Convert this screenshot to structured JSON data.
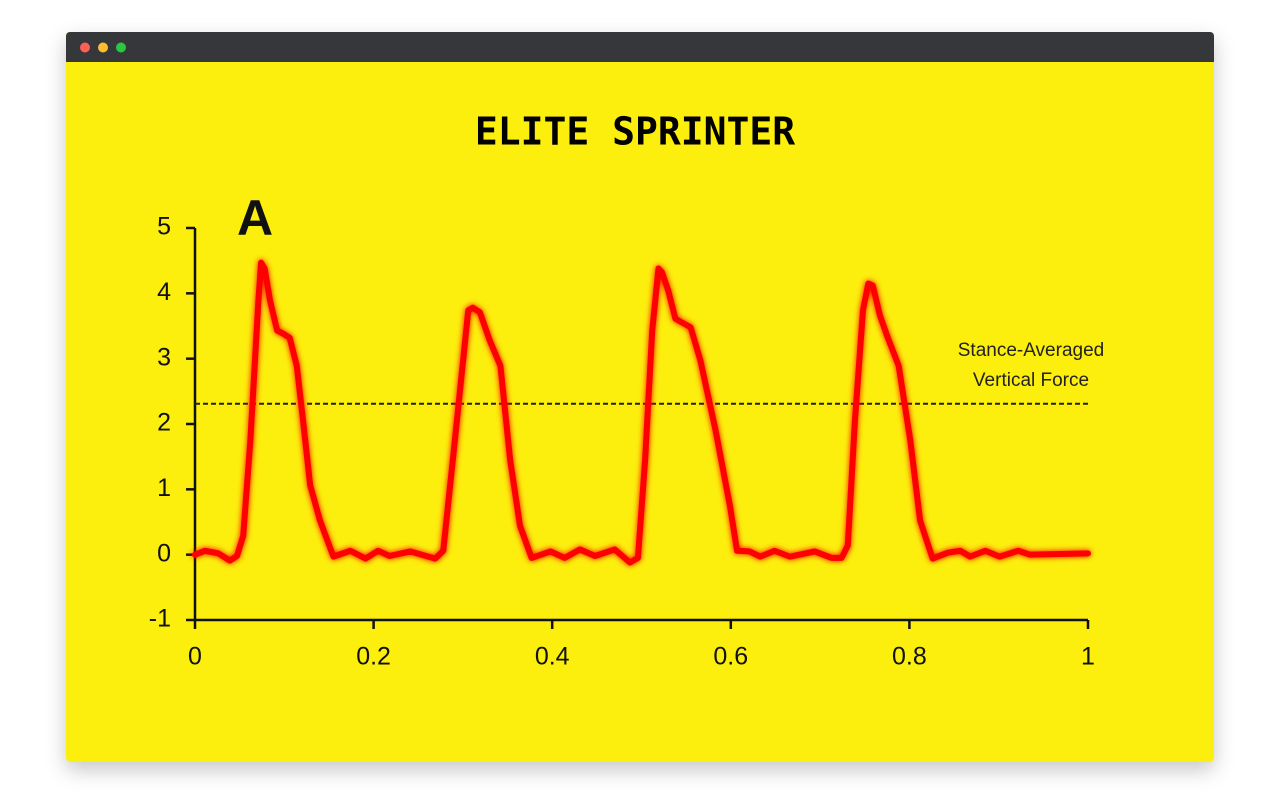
{
  "chart_data": {
    "type": "line",
    "title": "ELITE SPRINTER",
    "panel_label": "A",
    "x": [
      0,
      0.011,
      0.026,
      0.039,
      0.047,
      0.054,
      0.062,
      0.071,
      0.074,
      0.078,
      0.084,
      0.092,
      0.099,
      0.106,
      0.114,
      0.121,
      0.129,
      0.14,
      0.155,
      0.174,
      0.191,
      0.205,
      0.218,
      0.241,
      0.269,
      0.278,
      0.291,
      0.306,
      0.311,
      0.319,
      0.33,
      0.342,
      0.353,
      0.364,
      0.377,
      0.398,
      0.414,
      0.431,
      0.448,
      0.47,
      0.487,
      0.496,
      0.504,
      0.512,
      0.519,
      0.523,
      0.53,
      0.538,
      0.555,
      0.566,
      0.583,
      0.599,
      0.607,
      0.621,
      0.633,
      0.649,
      0.666,
      0.694,
      0.713,
      0.724,
      0.731,
      0.739,
      0.748,
      0.754,
      0.759,
      0.767,
      0.775,
      0.788,
      0.801,
      0.812,
      0.826,
      0.843,
      0.857,
      0.868,
      0.885,
      0.901,
      0.922,
      0.935,
      1
    ],
    "values": [
      0,
      0.06,
      0.02,
      -0.09,
      -0.02,
      0.29,
      1.75,
      3.89,
      4.47,
      4.38,
      3.89,
      3.43,
      3.38,
      3.32,
      2.89,
      2.05,
      1.06,
      0.52,
      -0.03,
      0.06,
      -0.06,
      0.06,
      -0.02,
      0.05,
      -0.06,
      0.06,
      1.75,
      3.74,
      3.78,
      3.71,
      3.28,
      2.89,
      1.44,
      0.44,
      -0.05,
      0.05,
      -0.05,
      0.08,
      -0.02,
      0.08,
      -0.12,
      -0.05,
      1.44,
      3.43,
      4.38,
      4.32,
      4.04,
      3.61,
      3.48,
      2.97,
      1.9,
      0.75,
      0.06,
      0.05,
      -0.03,
      0.06,
      -0.03,
      0.05,
      -0.05,
      -0.05,
      0.14,
      2.05,
      3.74,
      4.15,
      4.12,
      3.66,
      3.35,
      2.89,
      1.75,
      0.52,
      -0.06,
      0.03,
      0.06,
      -0.03,
      0.06,
      -0.03,
      0.06,
      0,
      0.02
    ],
    "color": "#ff0000",
    "xlim": [
      0,
      1
    ],
    "xticks": [
      0,
      0.2,
      0.4,
      0.6,
      0.8,
      1
    ],
    "ylim": [
      -1,
      5
    ],
    "yticks": [
      -1,
      0,
      1,
      2,
      3,
      4,
      5
    ],
    "reference_line": {
      "value": 2.31,
      "label": [
        "Stance-Averaged",
        "Vertical Force"
      ]
    }
  }
}
